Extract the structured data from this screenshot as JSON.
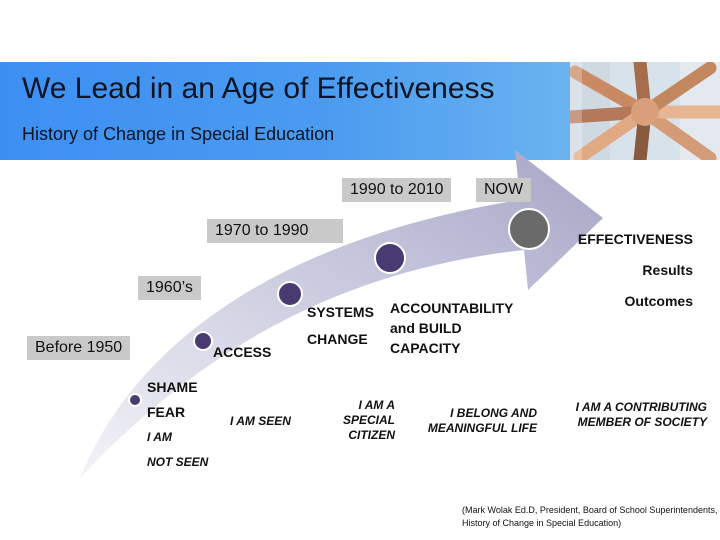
{
  "header": {
    "title": "We Lead in an Age of Effectiveness",
    "subtitle": "History of Change in Special Education",
    "photo_icon": "stacked-hands-photo"
  },
  "eras": [
    {
      "label": "Before 1950"
    },
    {
      "label": "1960’s"
    },
    {
      "label": "1970 to 1990"
    },
    {
      "label": "1990 to 2010"
    },
    {
      "label": "NOW"
    }
  ],
  "stages": {
    "shame": {
      "line1": "SHAME",
      "line2": "FEAR",
      "line3": "I AM",
      "line4": "NOT SEEN"
    },
    "access": {
      "line1": "ACCESS"
    },
    "systems": {
      "line1": "SYSTEMS",
      "line2": "CHANGE"
    },
    "accountability": {
      "line1": "ACCOUNTABILITY",
      "line2": "and BUILD",
      "line3": "CAPACITY"
    },
    "effectiveness": {
      "line1": "EFFECTIVENESS",
      "line2": "Results",
      "line3": "Outcomes"
    }
  },
  "statements": {
    "seen": "I AM SEEN",
    "special": {
      "line1": "I AM A",
      "line2": "SPECIAL",
      "line3": "CITIZEN"
    },
    "belong": {
      "line1": "I BELONG AND",
      "line2": "MEANINGFUL LIFE"
    },
    "contributing": {
      "line1": "I AM A CONTRIBUTING",
      "line2": "MEMBER OF SOCIETY"
    }
  },
  "colors": {
    "arrow_light": "#e9e9f3",
    "arrow_dark": "#aaaacb",
    "node": "#4a3a72",
    "node_final": "#6a6a6a"
  },
  "credit": {
    "line1": "(Mark Wolak Ed.D, President, Board of School Superintendents,",
    "line2": "History of Change in Special Education)"
  }
}
